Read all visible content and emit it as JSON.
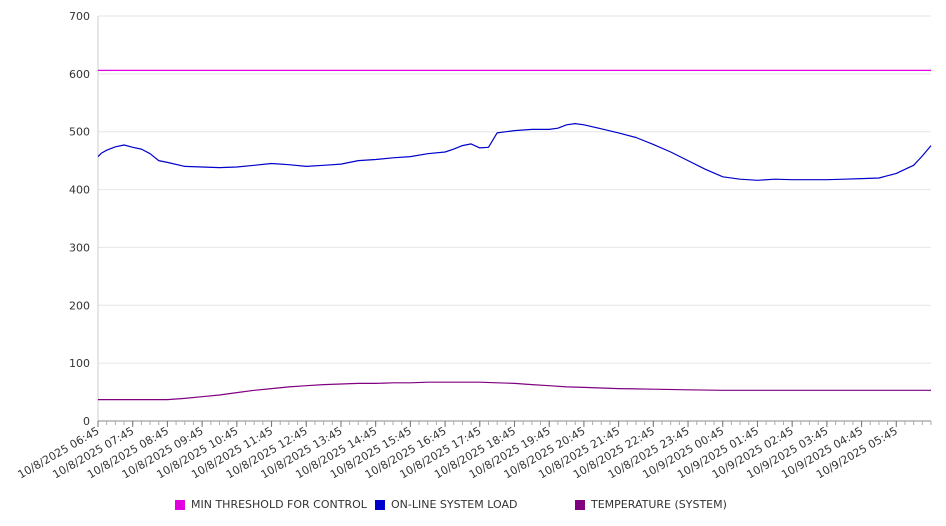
{
  "chart_data": {
    "type": "line",
    "ylim": [
      0,
      700
    ],
    "yticks": [
      0,
      100,
      200,
      300,
      400,
      500,
      600,
      700
    ],
    "x_tick_labels": [
      "10/8/2025 06:45",
      "10/8/2025 07:45",
      "10/8/2025 08:45",
      "10/8/2025 09:45",
      "10/8/2025 10:45",
      "10/8/2025 11:45",
      "10/8/2025 12:45",
      "10/8/2025 13:45",
      "10/8/2025 14:45",
      "10/8/2025 15:45",
      "10/8/2025 16:45",
      "10/8/2025 17:45",
      "10/8/2025 18:45",
      "10/8/2025 19:45",
      "10/8/2025 20:45",
      "10/8/2025 21:45",
      "10/8/2025 22:45",
      "10/8/2025 23:45",
      "10/9/2025 00:45",
      "10/9/2025 01:45",
      "10/9/2025 02:45",
      "10/9/2025 03:45",
      "10/9/2025 04:45",
      "10/9/2025 05:45"
    ],
    "x_range_hours": [
      0,
      24
    ],
    "grid": true,
    "legend": "bottom",
    "series": [
      {
        "name": "MIN THRESHOLD FOR CONTROL",
        "color": "#e000e0",
        "x": [
          0,
          24
        ],
        "values": [
          606,
          606
        ]
      },
      {
        "name": "ON-LINE SYSTEM LOAD",
        "color": "#0000cc",
        "x": [
          0,
          0.1,
          0.25,
          0.5,
          0.75,
          1.0,
          1.25,
          1.5,
          1.75,
          2.0,
          2.5,
          3.0,
          3.5,
          4.0,
          4.5,
          5.0,
          5.5,
          6.0,
          6.5,
          7.0,
          7.5,
          8.0,
          8.5,
          9.0,
          9.5,
          10.0,
          10.25,
          10.5,
          10.75,
          11.0,
          11.25,
          11.5,
          12.0,
          12.5,
          13.0,
          13.25,
          13.5,
          13.75,
          14.0,
          14.5,
          15.0,
          15.5,
          16.0,
          16.5,
          17.0,
          17.5,
          18.0,
          18.5,
          19.0,
          19.5,
          20.0,
          20.5,
          21.0,
          21.5,
          22.0,
          22.5,
          23.0,
          23.25,
          23.5,
          23.75,
          24.0
        ],
        "values": [
          457,
          463,
          468,
          474,
          477,
          473,
          470,
          462,
          450,
          447,
          440,
          439,
          438,
          439,
          442,
          445,
          443,
          440,
          442,
          444,
          450,
          452,
          455,
          457,
          462,
          465,
          470,
          476,
          479,
          472,
          473,
          498,
          502,
          504,
          504,
          506,
          512,
          514,
          512,
          505,
          498,
          490,
          478,
          465,
          450,
          435,
          422,
          418,
          416,
          418,
          417,
          417,
          417,
          418,
          419,
          420,
          428,
          435,
          442,
          458,
          476
        ]
      },
      {
        "name": "TEMPERATURE (SYSTEM)",
        "color": "#800080",
        "x": [
          0,
          1,
          1.5,
          2,
          2.5,
          3,
          3.5,
          4,
          4.5,
          5,
          5.5,
          6,
          6.5,
          7,
          7.5,
          8,
          8.5,
          9,
          9.5,
          10,
          10.5,
          11,
          11.5,
          12,
          12.5,
          13,
          13.5,
          14,
          15,
          16,
          17,
          18,
          19,
          20,
          21,
          22,
          23,
          24
        ],
        "values": [
          37,
          37,
          37,
          37,
          39,
          42,
          45,
          49,
          53,
          56,
          59,
          61,
          63,
          64,
          65,
          65,
          66,
          66,
          67,
          67,
          67,
          67,
          66,
          65,
          63,
          61,
          59,
          58,
          56,
          55,
          54,
          53,
          53,
          53,
          53,
          53,
          53,
          53
        ]
      }
    ]
  }
}
